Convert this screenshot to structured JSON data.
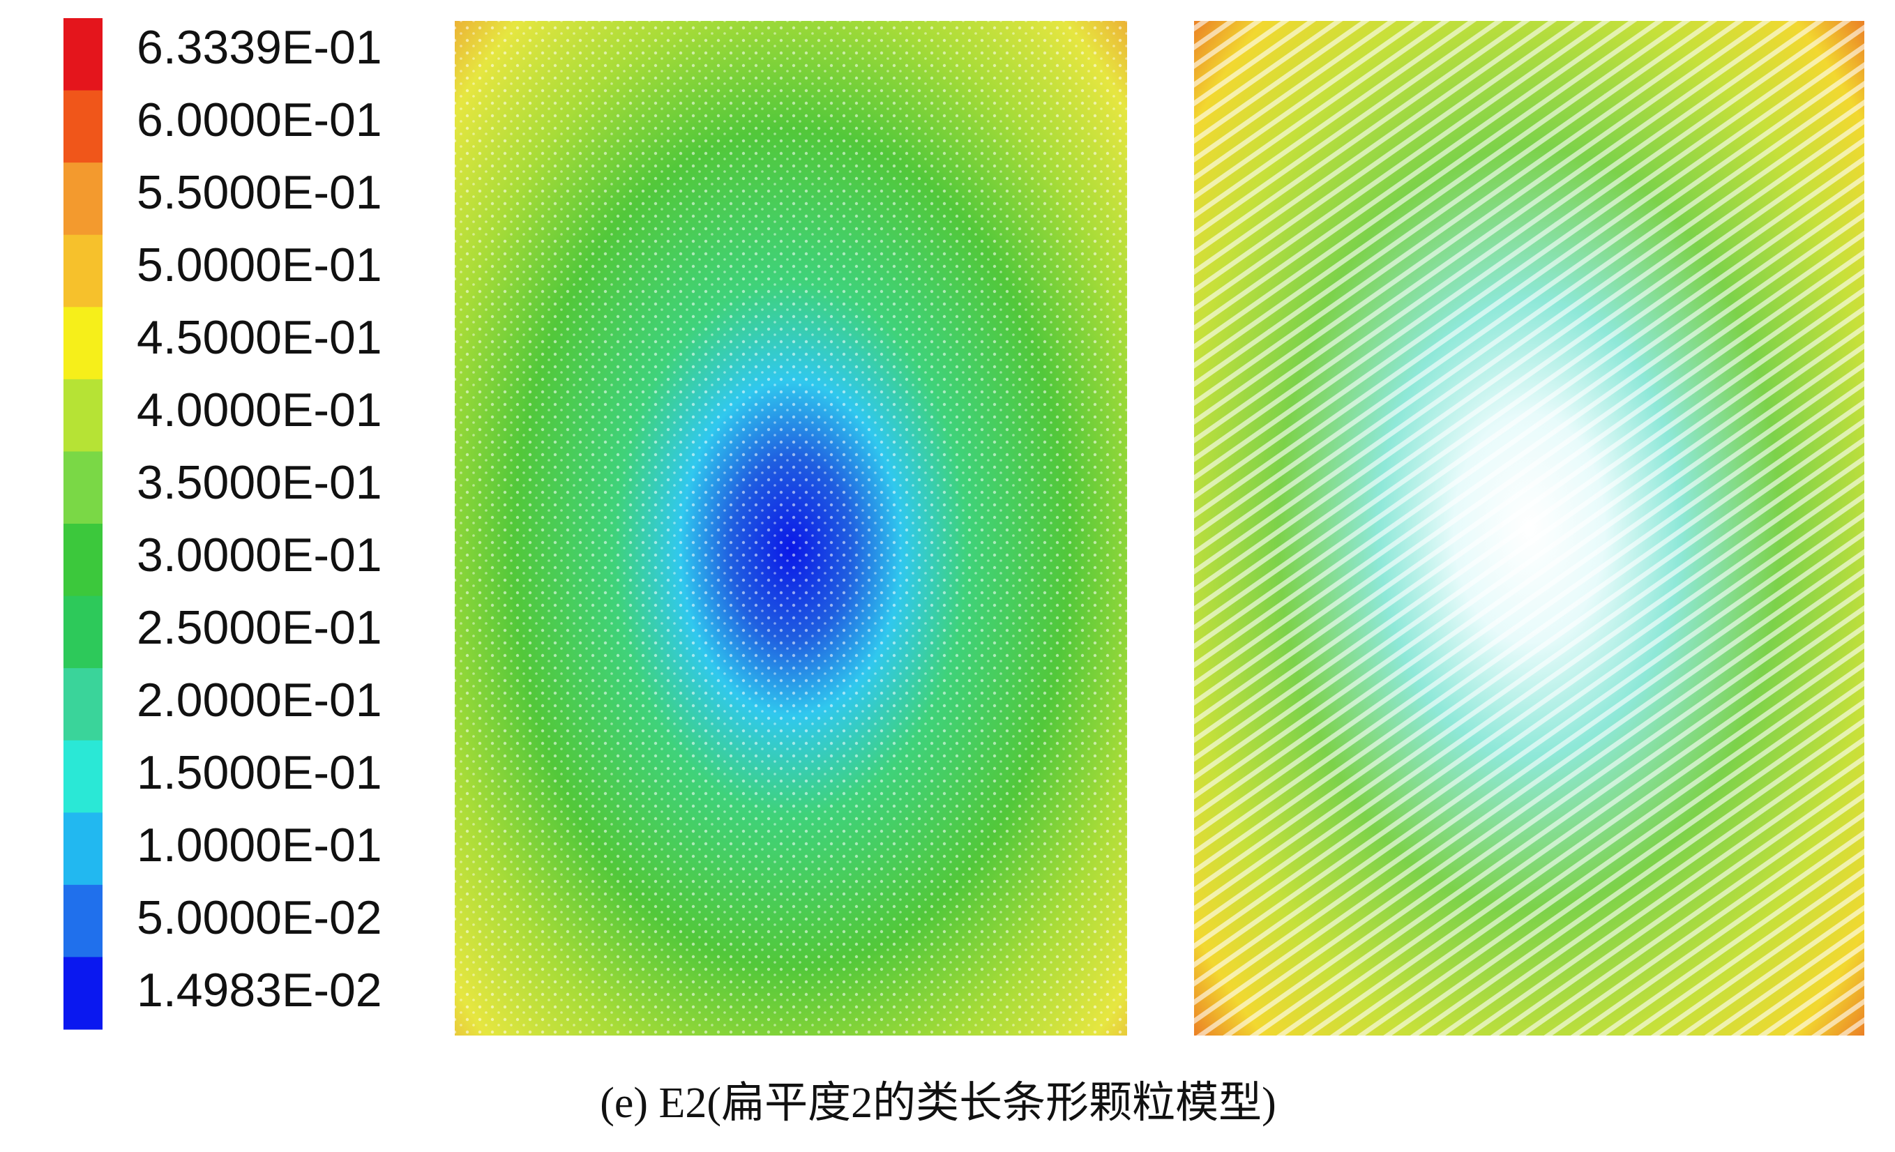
{
  "colorbar": {
    "labels": [
      "6.3339E-01",
      "6.0000E-01",
      "5.5000E-01",
      "5.0000E-01",
      "4.5000E-01",
      "4.0000E-01",
      "3.5000E-01",
      "3.0000E-01",
      "2.5000E-01",
      "2.0000E-01",
      "1.5000E-01",
      "1.0000E-01",
      "5.0000E-02",
      "1.4983E-02"
    ],
    "colors": [
      "#e4151c",
      "#f0561a",
      "#f39a2e",
      "#f6c12c",
      "#f6ef1a",
      "#b6e335",
      "#7ad846",
      "#3cc83c",
      "#2dc95a",
      "#3ad49a",
      "#2ae8d6",
      "#22b8f0",
      "#2070ec",
      "#0a18f0"
    ]
  },
  "caption": "(e) E2(扁平度2的类长条形颗粒模型)"
}
